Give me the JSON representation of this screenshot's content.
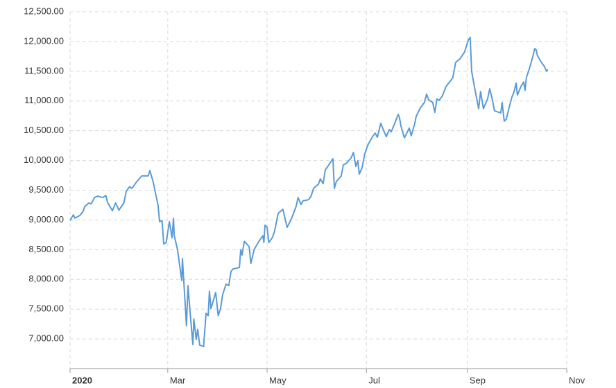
{
  "chart_data": {
    "type": "line",
    "color": "#5b9bd5",
    "grid": true,
    "xlim": [
      0,
      305
    ],
    "ylim": [
      6500,
      12500
    ],
    "xticks": [
      {
        "value": 0,
        "label": "2020"
      },
      {
        "value": 60,
        "label": "Mar"
      },
      {
        "value": 121,
        "label": "May"
      },
      {
        "value": 182,
        "label": "Jul"
      },
      {
        "value": 244,
        "label": "Sep"
      },
      {
        "value": 305,
        "label": "Nov"
      }
    ],
    "yticks": [
      {
        "value": 7000,
        "label": "7,000.00"
      },
      {
        "value": 7500,
        "label": "7,500.00"
      },
      {
        "value": 8000,
        "label": "8,000.00"
      },
      {
        "value": 8500,
        "label": "8,500.00"
      },
      {
        "value": 9000,
        "label": "9,000.00"
      },
      {
        "value": 9500,
        "label": "9,500.00"
      },
      {
        "value": 10000,
        "label": "10,000.00"
      },
      {
        "value": 10500,
        "label": "10,500.00"
      },
      {
        "value": 11000,
        "label": "11,000.00"
      },
      {
        "value": 11500,
        "label": "11,500.00"
      },
      {
        "value": 12000,
        "label": "12,000.00"
      },
      {
        "value": 12500,
        "label": "12,500.00"
      }
    ],
    "x": [
      0,
      2,
      3,
      6,
      8,
      9,
      11.5,
      13,
      15,
      17,
      20,
      22,
      23,
      26,
      28,
      30,
      33,
      34.5,
      36.5,
      38,
      41,
      44,
      46,
      48,
      49,
      51,
      54,
      55,
      56.5,
      57.5,
      59,
      61,
      62.6,
      63.5,
      64,
      66,
      68.6,
      69,
      71.5,
      72.4,
      73.7,
      75.4,
      76,
      77.5,
      78.4,
      79.6,
      82,
      83.5,
      84.8,
      85.6,
      86.5,
      89.4,
      91,
      92.4,
      93.7,
      95.8,
      97.5,
      98.8,
      100,
      104,
      104.8,
      105.6,
      107,
      110,
      111,
      113,
      116,
      118.4,
      119,
      119.7,
      121,
      122,
      124.4,
      125.6,
      127.8,
      130.7,
      133.3,
      135.9,
      138.8,
      140,
      141.8,
      143,
      146.5,
      148,
      149.5,
      152.5,
      153.7,
      155.4,
      156.7,
      158.9,
      161.4,
      162.3,
      163.5,
      166.5,
      167.8,
      169.5,
      172.5,
      174,
      175.5,
      176.7,
      177.6,
      179.3,
      181,
      182.7,
      185.7,
      187.4,
      188.7,
      190.8,
      192.5,
      194.2,
      196,
      197.2,
      198.9,
      201.5,
      202.3,
      203.2,
      205.3,
      208.3,
      209.5,
      211.7,
      212.5,
      215,
      217.6,
      218.9,
      220.2,
      222.7,
      224,
      225.3,
      226.6,
      228.7,
      230.8,
      232.5,
      235,
      236.8,
      239.3,
      242.3,
      244.5,
      245.7,
      246.6,
      248.3,
      250.9,
      252.1,
      253.8,
      256.4,
      257.7,
      259.4,
      260.6,
      264.5,
      265.3,
      266.6,
      267.9,
      269.6,
      271.3,
      272.6,
      273.9,
      274.7,
      276.8,
      278.5,
      279.4,
      280.2,
      281.9,
      284.1,
      285.3,
      286.2,
      287,
      288.8,
      291.3,
      292.6,
      293.4
    ],
    "values": [
      8990,
      9085,
      9030,
      9075,
      9145,
      9225,
      9285,
      9270,
      9375,
      9400,
      9375,
      9410,
      9295,
      9155,
      9285,
      9165,
      9285,
      9480,
      9560,
      9530,
      9645,
      9740,
      9740,
      9740,
      9830,
      9645,
      9250,
      8970,
      8990,
      8595,
      8620,
      8970,
      8700,
      9025,
      8735,
      8500,
      7980,
      8350,
      7220,
      7895,
      7455,
      6905,
      7335,
      6990,
      7160,
      6895,
      6870,
      7430,
      7390,
      7800,
      7510,
      7780,
      7390,
      7510,
      7745,
      7920,
      7895,
      8130,
      8175,
      8200,
      8500,
      8410,
      8640,
      8550,
      8270,
      8500,
      8640,
      8735,
      8620,
      8910,
      8875,
      8620,
      8710,
      8815,
      9110,
      9180,
      8875,
      9015,
      9225,
      9375,
      9260,
      9320,
      9340,
      9400,
      9530,
      9600,
      9690,
      9610,
      9840,
      9925,
      10030,
      9530,
      9645,
      9740,
      9925,
      9950,
      10040,
      10135,
      9900,
      9995,
      9770,
      9875,
      10110,
      10250,
      10400,
      10460,
      10390,
      10625,
      10505,
      10400,
      10520,
      10480,
      10590,
      10775,
      10720,
      10580,
      10380,
      10545,
      10415,
      10625,
      10740,
      10880,
      10975,
      11115,
      11020,
      10975,
      10810,
      11035,
      11010,
      11090,
      11240,
      11300,
      11390,
      11650,
      11705,
      11825,
      12020,
      12070,
      11500,
      11240,
      10870,
      11160,
      10870,
      11035,
      11205,
      11010,
      10835,
      10800,
      10975,
      10660,
      10695,
      10890,
      11065,
      11150,
      11300,
      11100,
      11240,
      11320,
      11180,
      11395,
      11530,
      11740,
      11880,
      11860,
      11765,
      11675,
      11580,
      11500,
      11530
    ]
  }
}
